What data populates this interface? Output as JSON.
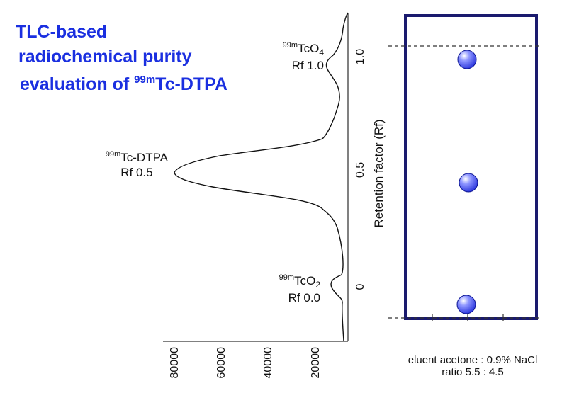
{
  "title": {
    "line1": "TLC-based",
    "line2": "radiochemical purity",
    "line3_prefix": "evaluation of ",
    "line3_sup": "99m",
    "line3_suffix": "Tc-DTPA"
  },
  "peaks": [
    {
      "sup": "99m",
      "base": "TcO",
      "sub": "4",
      "rf": "Rf 1.0"
    },
    {
      "sup": "99m",
      "base": "Tc-DTPA",
      "sub": "",
      "rf": "Rf 0.5"
    },
    {
      "sup": "99m",
      "base": "TcO",
      "sub": "2",
      "rf": "Rf 0.0"
    }
  ],
  "axis": {
    "y_title": "Retention factor (Rf)",
    "y_ticks": [
      "1.0",
      "0.5",
      "0"
    ],
    "x_ticks": [
      "80000",
      "60000",
      "40000",
      "20000"
    ]
  },
  "caption": {
    "line1": "eluent acetone : 0.9% NaCl",
    "line2": "ratio 5.5 : 4.5"
  },
  "colors": {
    "title": "#1a2fe0",
    "plate_border": "#1a1a6e",
    "spot": "#3040f0"
  }
}
